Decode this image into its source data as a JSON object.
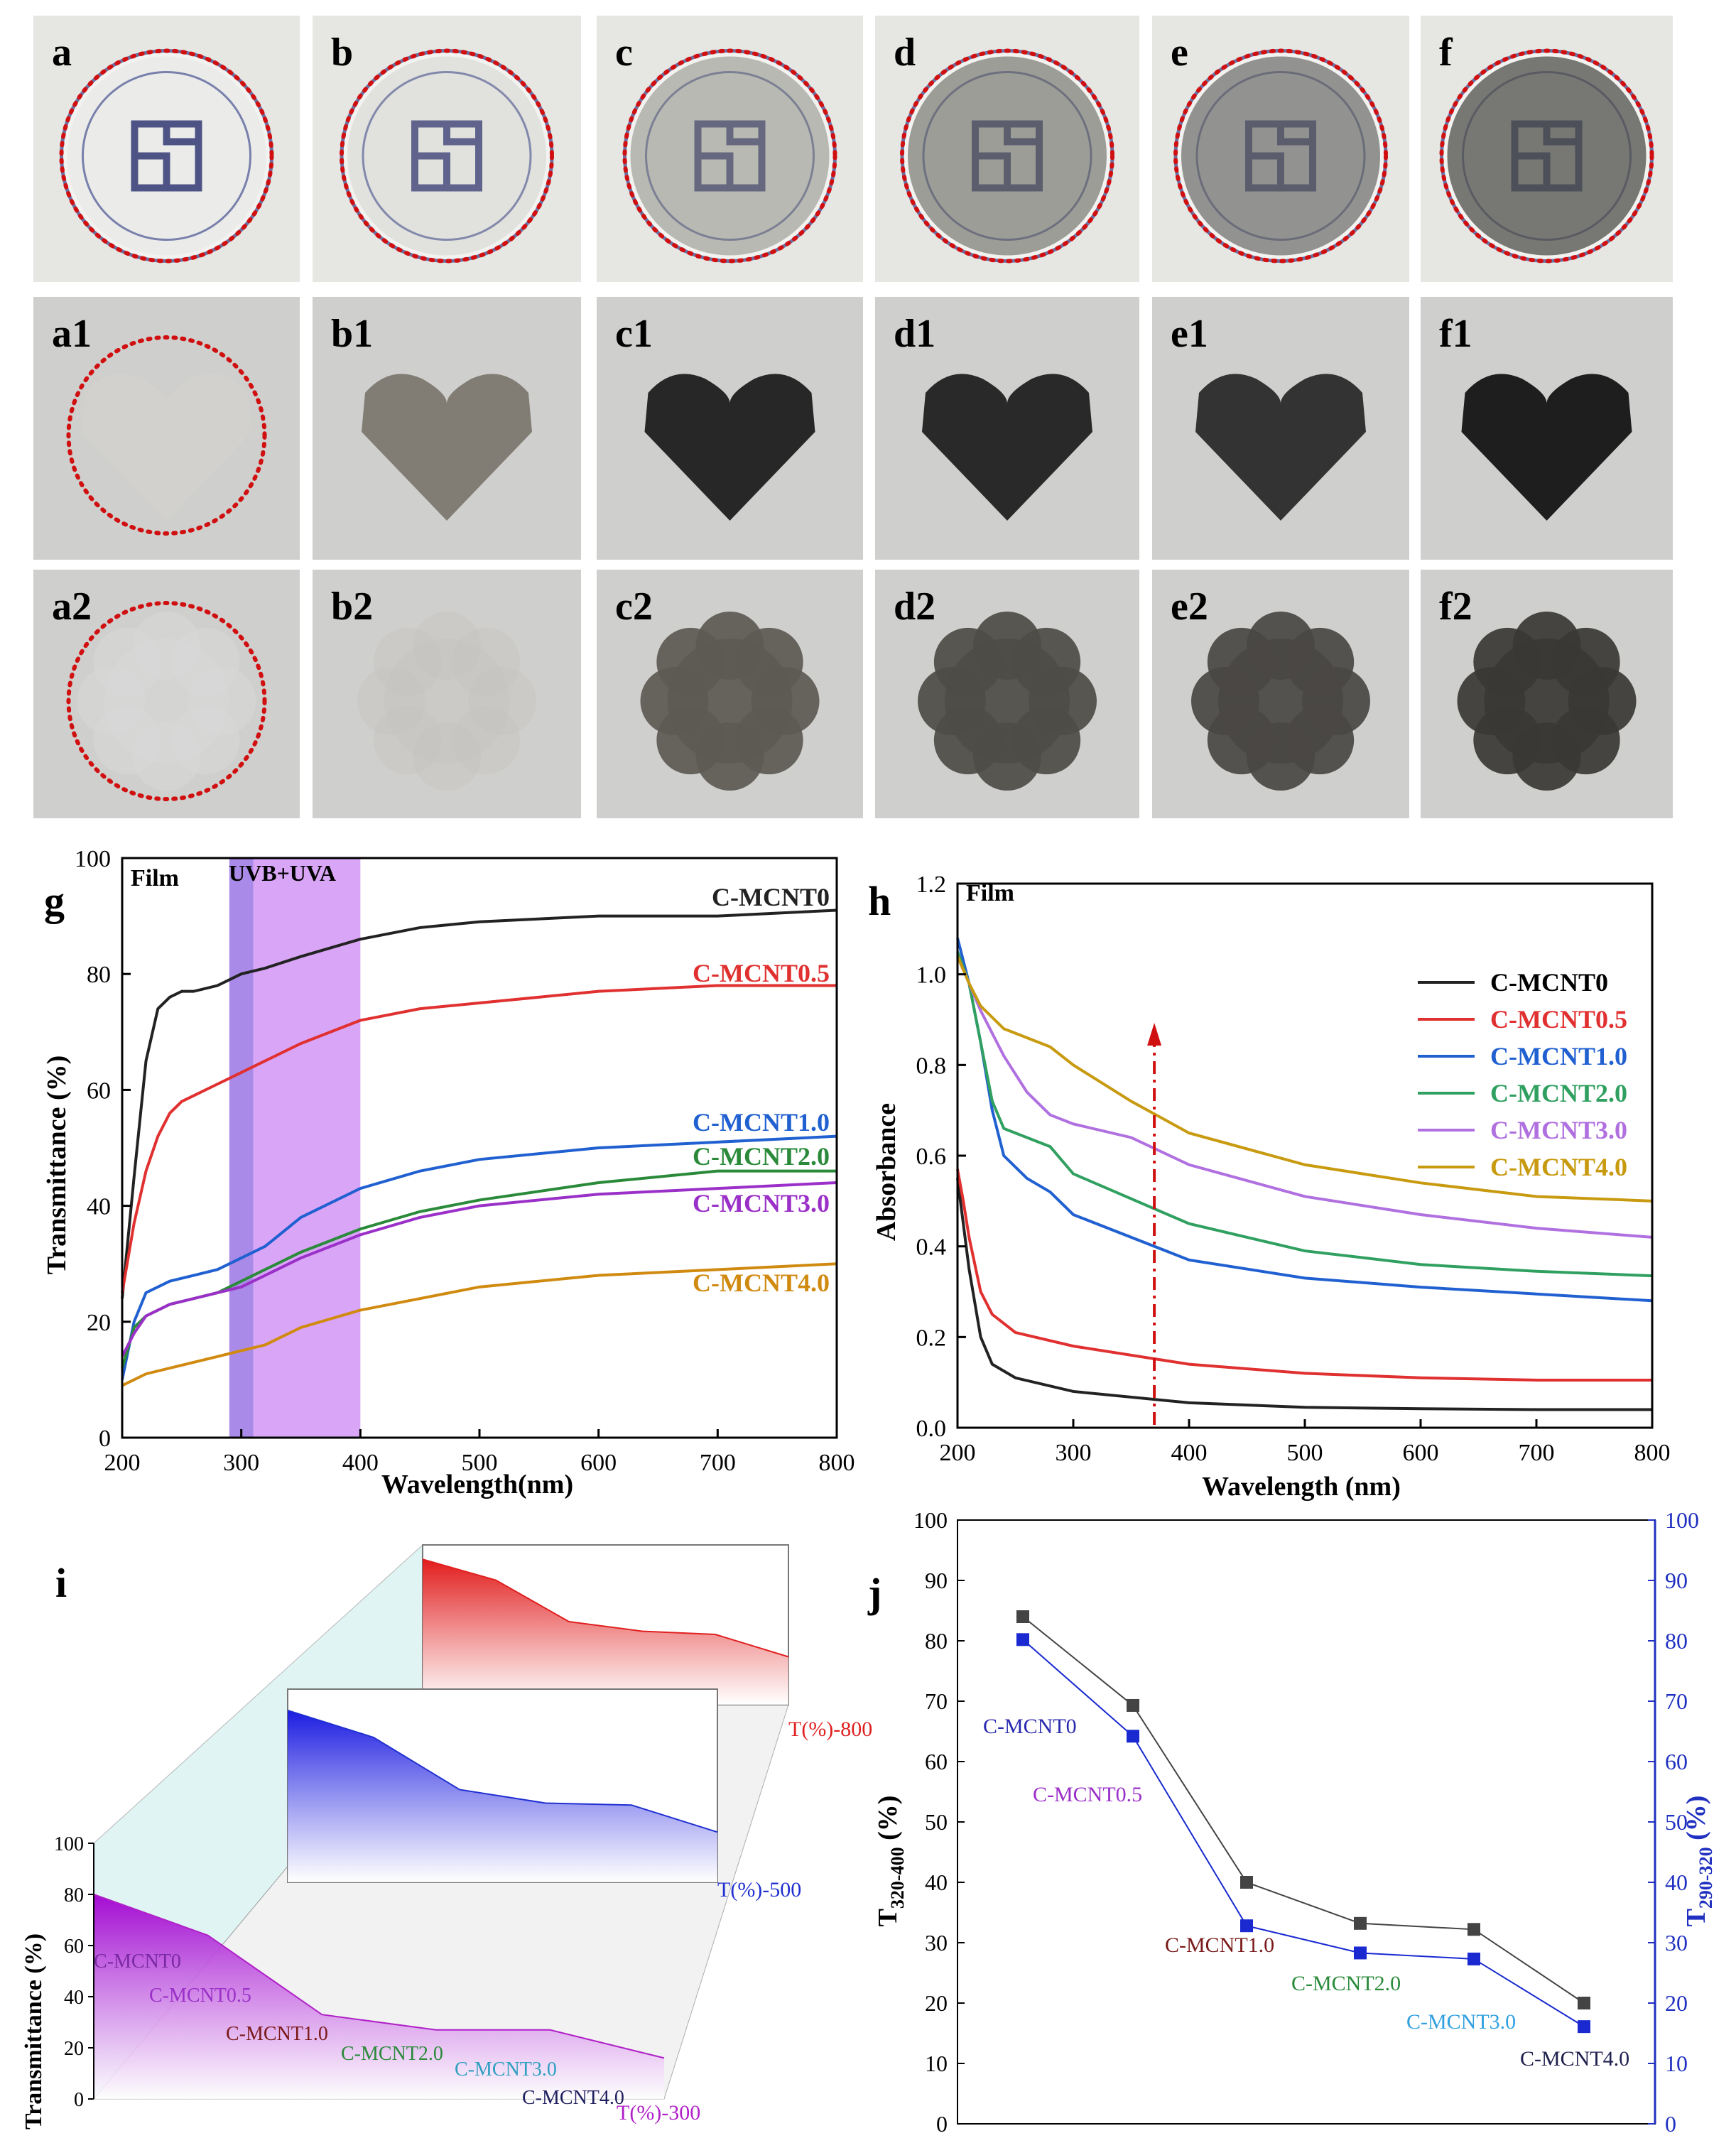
{
  "photos": {
    "row1": [
      {
        "label": "a",
        "tint": "#c4c8cc",
        "opacity": 0.15
      },
      {
        "label": "b",
        "tint": "#b8b8b6",
        "opacity": 0.3
      },
      {
        "label": "c",
        "tint": "#8a8a84",
        "opacity": 0.55
      },
      {
        "label": "d",
        "tint": "#6f6f69",
        "opacity": 0.65
      },
      {
        "label": "e",
        "tint": "#6a6a66",
        "opacity": 0.7
      },
      {
        "label": "f",
        "tint": "#55554f",
        "opacity": 0.78
      }
    ],
    "row2": [
      {
        "label": "a1",
        "shape_color": "#d6d4d0"
      },
      {
        "label": "b1",
        "shape_color": "#7c7870"
      },
      {
        "label": "c1",
        "shape_color": "#1e1e1e"
      },
      {
        "label": "d1",
        "shape_color": "#202020"
      },
      {
        "label": "e1",
        "shape_color": "#2a2a2a"
      },
      {
        "label": "f1",
        "shape_color": "#141414"
      }
    ],
    "row3": [
      {
        "label": "a2",
        "shape_color": "#d9dad9"
      },
      {
        "label": "b2",
        "shape_color": "#c6c4c0"
      },
      {
        "label": "c2",
        "shape_color": "#5d5a54"
      },
      {
        "label": "d2",
        "shape_color": "#4e4c47"
      },
      {
        "label": "e2",
        "shape_color": "#4a4844"
      },
      {
        "label": "f2",
        "shape_color": "#393834"
      }
    ]
  },
  "chart_data": [
    {
      "panel": "g",
      "type": "line",
      "title": "Film",
      "xlabel": "Wavelength(nm)",
      "ylabel": "Transmittance (%)",
      "xlim": [
        200,
        800
      ],
      "ylim": [
        0,
        100
      ],
      "xticks": [
        200,
        300,
        400,
        500,
        600,
        700,
        800
      ],
      "yticks": [
        0,
        20,
        40,
        60,
        80,
        100
      ],
      "band": {
        "label": "UVB+UVA",
        "range": [
          290,
          400
        ],
        "dark_range": [
          290,
          310
        ]
      },
      "series": [
        {
          "name": "C-MCNT0",
          "color": "#222222",
          "x": [
            200,
            210,
            220,
            230,
            240,
            250,
            260,
            280,
            300,
            320,
            350,
            400,
            450,
            500,
            600,
            700,
            800
          ],
          "y": [
            24,
            45,
            65,
            74,
            76,
            77,
            77,
            78,
            80,
            81,
            83,
            86,
            88,
            89,
            90,
            90,
            91
          ]
        },
        {
          "name": "C-MCNT0.5",
          "color": "#e03030",
          "x": [
            200,
            210,
            220,
            230,
            240,
            250,
            260,
            280,
            300,
            320,
            350,
            400,
            450,
            500,
            600,
            700,
            800
          ],
          "y": [
            25,
            37,
            46,
            52,
            56,
            58,
            59,
            61,
            63,
            65,
            68,
            72,
            74,
            75,
            77,
            78,
            78
          ]
        },
        {
          "name": "C-MCNT1.0",
          "color": "#2060d0",
          "x": [
            200,
            210,
            220,
            240,
            260,
            280,
            300,
            320,
            350,
            400,
            450,
            500,
            600,
            700,
            800
          ],
          "y": [
            10,
            20,
            25,
            27,
            28,
            29,
            31,
            33,
            38,
            43,
            46,
            48,
            50,
            51,
            52
          ]
        },
        {
          "name": "C-MCNT2.0",
          "color": "#2a8a3a",
          "x": [
            200,
            210,
            220,
            240,
            260,
            280,
            300,
            320,
            350,
            400,
            450,
            500,
            600,
            700,
            800
          ],
          "y": [
            12,
            19,
            21,
            23,
            24,
            25,
            27,
            29,
            32,
            36,
            39,
            41,
            44,
            46,
            46
          ]
        },
        {
          "name": "C-MCNT3.0",
          "color": "#9a30c8",
          "x": [
            200,
            210,
            220,
            240,
            260,
            280,
            300,
            320,
            350,
            400,
            450,
            500,
            600,
            700,
            800
          ],
          "y": [
            14,
            18,
            21,
            23,
            24,
            25,
            26,
            28,
            31,
            35,
            38,
            40,
            42,
            43,
            44
          ]
        },
        {
          "name": "C-MCNT4.0",
          "color": "#d08a10",
          "x": [
            200,
            210,
            220,
            240,
            260,
            280,
            300,
            320,
            350,
            400,
            450,
            500,
            600,
            700,
            800
          ],
          "y": [
            9,
            10,
            11,
            12,
            13,
            14,
            15,
            16,
            19,
            22,
            24,
            26,
            28,
            29,
            30
          ]
        }
      ]
    },
    {
      "panel": "h",
      "type": "line",
      "title": "Film",
      "xlabel": "Wavelength (nm)",
      "ylabel": "Absorbance",
      "xlim": [
        200,
        800
      ],
      "ylim": [
        0,
        1.2
      ],
      "xticks": [
        200,
        300,
        400,
        500,
        600,
        700,
        800
      ],
      "yticks": [
        0.0,
        0.2,
        0.4,
        0.6,
        0.8,
        1.0,
        1.2
      ],
      "arrow_x": 370,
      "series": [
        {
          "name": "C-MCNT0",
          "color": "#222222",
          "x": [
            200,
            205,
            210,
            220,
            230,
            250,
            300,
            400,
            500,
            600,
            700,
            800
          ],
          "y": [
            0.55,
            0.45,
            0.35,
            0.2,
            0.14,
            0.11,
            0.08,
            0.055,
            0.045,
            0.042,
            0.04,
            0.04
          ]
        },
        {
          "name": "C-MCNT0.5",
          "color": "#e03030",
          "x": [
            200,
            205,
            210,
            220,
            230,
            250,
            300,
            400,
            500,
            600,
            700,
            800
          ],
          "y": [
            0.57,
            0.5,
            0.42,
            0.3,
            0.25,
            0.21,
            0.18,
            0.14,
            0.12,
            0.11,
            0.105,
            0.105
          ]
        },
        {
          "name": "C-MCNT1.0",
          "color": "#2060d0",
          "x": [
            200,
            210,
            220,
            230,
            240,
            260,
            280,
            300,
            400,
            500,
            600,
            700,
            800
          ],
          "y": [
            1.08,
            0.98,
            0.85,
            0.7,
            0.6,
            0.55,
            0.52,
            0.47,
            0.37,
            0.33,
            0.31,
            0.295,
            0.28
          ]
        },
        {
          "name": "C-MCNT2.0",
          "color": "#30a060",
          "x": [
            200,
            210,
            220,
            230,
            240,
            260,
            280,
            300,
            400,
            500,
            600,
            700,
            800
          ],
          "y": [
            1.05,
            0.98,
            0.85,
            0.72,
            0.66,
            0.64,
            0.62,
            0.56,
            0.45,
            0.39,
            0.36,
            0.345,
            0.335
          ]
        },
        {
          "name": "C-MCNT3.0",
          "color": "#b070e0",
          "x": [
            200,
            210,
            220,
            240,
            260,
            280,
            300,
            350,
            400,
            500,
            600,
            700,
            800
          ],
          "y": [
            1.04,
            0.98,
            0.92,
            0.82,
            0.74,
            0.69,
            0.67,
            0.64,
            0.58,
            0.51,
            0.47,
            0.44,
            0.42
          ]
        },
        {
          "name": "C-MCNT4.0",
          "color": "#c89a10",
          "x": [
            200,
            210,
            220,
            240,
            260,
            280,
            300,
            350,
            400,
            500,
            600,
            700,
            800
          ],
          "y": [
            1.04,
            0.98,
            0.93,
            0.88,
            0.86,
            0.84,
            0.8,
            0.72,
            0.65,
            0.58,
            0.54,
            0.51,
            0.5
          ]
        }
      ]
    },
    {
      "panel": "i",
      "type": "area",
      "ylabel": "Transmittance (%)",
      "ylim": [
        0,
        100
      ],
      "yticks": [
        0,
        20,
        40,
        60,
        80,
        100
      ],
      "categories": [
        "C-MCNT0",
        "C-MCNT0.5",
        "C-MCNT1.0",
        "C-MCNT2.0",
        "C-MCNT3.0",
        "C-MCNT4.0"
      ],
      "category_colors": [
        "#7a2aa0",
        "#9a30c8",
        "#7a1a1a",
        "#2a8a3a",
        "#30a0c0",
        "#202060"
      ],
      "series": [
        {
          "name": "T(%)-300",
          "color": "#b020c8",
          "values": [
            80,
            64,
            33,
            27,
            27,
            16
          ]
        },
        {
          "name": "T(%)-500",
          "color": "#2030d0",
          "values": [
            89,
            75,
            48,
            41,
            40,
            26
          ]
        },
        {
          "name": "T(%)-800",
          "color": "#e02020",
          "values": [
            91,
            78,
            52,
            46,
            44,
            30
          ]
        }
      ]
    },
    {
      "panel": "j",
      "type": "scatter",
      "ylabel_left": "T320-400 (%)",
      "ylabel_right": "T290-320 (%)",
      "ylim": [
        0,
        100
      ],
      "yticks": [
        0,
        10,
        20,
        30,
        40,
        50,
        60,
        70,
        80,
        90,
        100
      ],
      "categories": [
        "C-MCNT0",
        "C-MCNT0.5",
        "C-MCNT1.0",
        "C-MCNT2.0",
        "C-MCNT3.0",
        "C-MCNT4.0"
      ],
      "category_colors": [
        "#2a2ab0",
        "#9a30c8",
        "#7a1a1a",
        "#2a8a3a",
        "#30a0e0",
        "#202050"
      ],
      "series": [
        {
          "name": "T320-400",
          "color": "#444444",
          "values": [
            84,
            69.3,
            40,
            33.2,
            32.2,
            20
          ]
        },
        {
          "name": "T290-320",
          "color": "#1a2ad0",
          "values": [
            80.2,
            64.2,
            32.8,
            28.3,
            27.3,
            16.1
          ]
        }
      ]
    }
  ]
}
